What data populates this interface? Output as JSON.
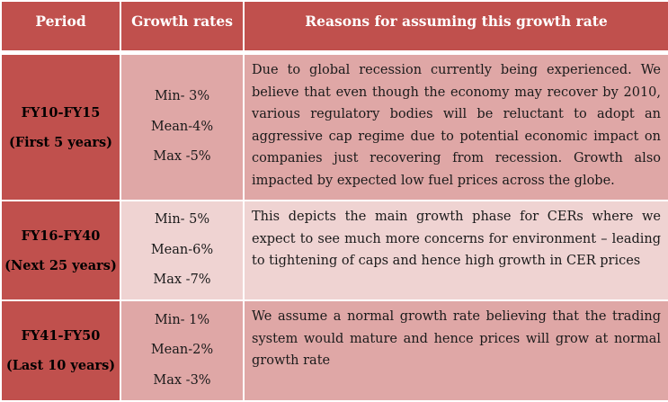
{
  "table": {
    "headers": [
      "Period",
      "Growth rates",
      "Reasons for assuming this growth rate"
    ],
    "rows": [
      {
        "period": [
          "FY10-FY15",
          "(First 5 years)"
        ],
        "rates": [
          "Min- 3%",
          "Mean-4%",
          "Max -5%"
        ],
        "reason": "Due to global recession currently being experienced. We believe that even though the economy may recover by 2010, various regulatory bodies will be reluctant to adopt an aggressive cap regime due to potential economic impact on companies just recovering from recession. Growth also impacted by expected low fuel prices across the globe."
      },
      {
        "period": [
          "FY16-FY40",
          "(Next 25 years)"
        ],
        "rates": [
          "Min- 5%",
          "Mean-6%",
          "Max -7%"
        ],
        "reason": "This depicts the main growth phase for CERs where we expect to see much more concerns for environment – leading to tightening of caps and hence high growth in CER prices"
      },
      {
        "period": [
          "FY41-FY50",
          "(Last 10 years)"
        ],
        "rates": [
          "Min- 1%",
          "Mean-2%",
          "Max -3%"
        ],
        "reason": "We assume a normal growth rate believing that the trading system would mature and hence prices will grow at normal growth rate"
      }
    ]
  },
  "colors": {
    "header": "#c0504d",
    "dark_band": "#dfa7a6",
    "light_band": "#efd3d2"
  }
}
